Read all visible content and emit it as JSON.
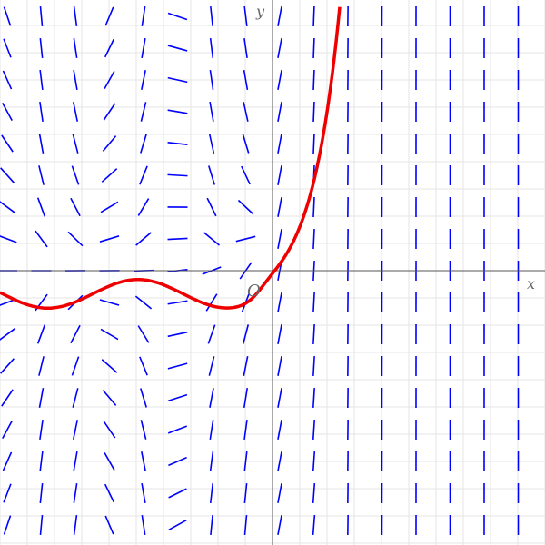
{
  "axes": {
    "x_label": "x",
    "y_label": "y",
    "origin_label": "O"
  }
}
